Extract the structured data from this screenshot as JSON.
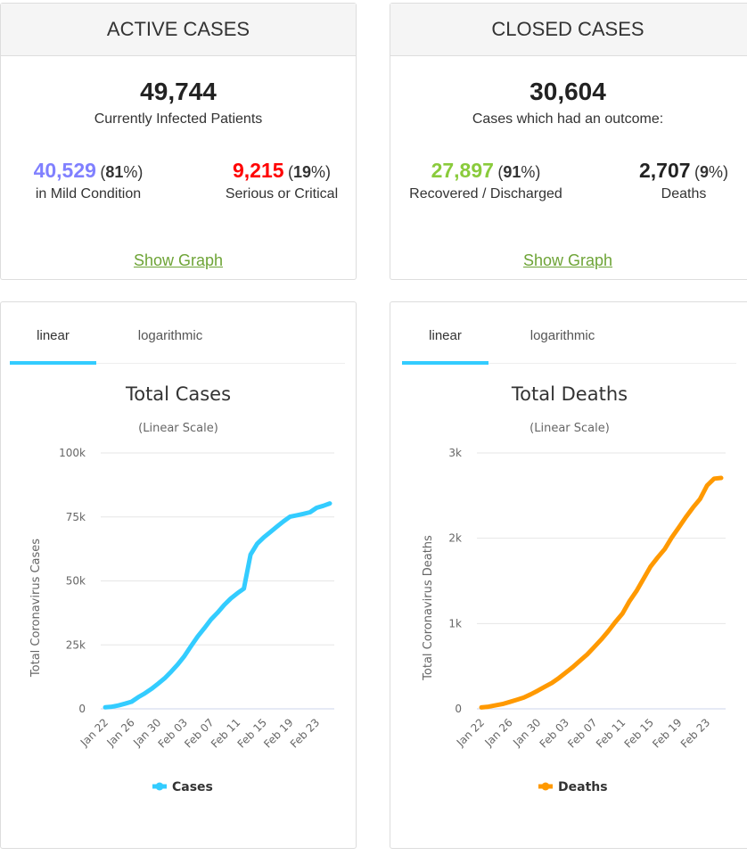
{
  "active": {
    "title": "ACTIVE CASES",
    "total": "49,744",
    "total_label": "Currently Infected Patients",
    "mild_value": "40,529",
    "mild_pct": "81",
    "mild_label": "in Mild Condition",
    "mild_color": "#8080ff",
    "serious_value": "9,215",
    "serious_pct": "19",
    "serious_label": "Serious or Critical",
    "serious_color": "#ff0000",
    "show_graph": "Show Graph"
  },
  "closed": {
    "title": "CLOSED CASES",
    "total": "30,604",
    "total_label": "Cases which had an outcome:",
    "recovered_value": "27,897",
    "recovered_pct": "91",
    "recovered_label": "Recovered / Discharged",
    "recovered_color": "#8acb3c",
    "deaths_value": "2,707",
    "deaths_pct": "9",
    "deaths_label": "Deaths",
    "deaths_color": "#222222",
    "show_graph": "Show Graph"
  },
  "tabs": {
    "linear": "linear",
    "log": "logarithmic",
    "accent": "#33ccff"
  },
  "chart_data": [
    {
      "type": "line",
      "title": "Total Cases",
      "subtitle": "(Linear Scale)",
      "xlabel": "",
      "ylabel": "Total Coronavirus Cases",
      "ylim": [
        0,
        100000
      ],
      "yticks": [
        0,
        25000,
        50000,
        75000,
        100000
      ],
      "ytick_labels": [
        "0",
        "25k",
        "50k",
        "75k",
        "100k"
      ],
      "xtick_labels": [
        "Jan 22",
        "Jan 26",
        "Jan 30",
        "Feb 03",
        "Feb 07",
        "Feb 11",
        "Feb 15",
        "Feb 19",
        "Feb 23"
      ],
      "x": [
        "Jan 22",
        "Jan 23",
        "Jan 24",
        "Jan 25",
        "Jan 26",
        "Jan 27",
        "Jan 28",
        "Jan 29",
        "Jan 30",
        "Jan 31",
        "Feb 01",
        "Feb 02",
        "Feb 03",
        "Feb 04",
        "Feb 05",
        "Feb 06",
        "Feb 07",
        "Feb 08",
        "Feb 09",
        "Feb 10",
        "Feb 11",
        "Feb 12",
        "Feb 13",
        "Feb 14",
        "Feb 15",
        "Feb 16",
        "Feb 17",
        "Feb 18",
        "Feb 19",
        "Feb 20",
        "Feb 21",
        "Feb 22",
        "Feb 23",
        "Feb 24",
        "Feb 25"
      ],
      "grid": true,
      "legend": "bottom",
      "series": [
        {
          "name": "Cases",
          "color": "#33ccff",
          "values": [
            580,
            845,
            1317,
            2015,
            2800,
            4581,
            6058,
            7813,
            9823,
            11950,
            14553,
            17391,
            20630,
            24554,
            28276,
            31481,
            34886,
            37558,
            40554,
            43103,
            45171,
            46997,
            60327,
            64543,
            67015,
            69104,
            71224,
            73258,
            75136,
            75639,
            76197,
            76819,
            78572,
            79339,
            80287
          ]
        }
      ]
    },
    {
      "type": "line",
      "title": "Total Deaths",
      "subtitle": "(Linear Scale)",
      "xlabel": "",
      "ylabel": "Total Coronavirus Deaths",
      "ylim": [
        0,
        3000
      ],
      "yticks": [
        0,
        1000,
        2000,
        3000
      ],
      "ytick_labels": [
        "0",
        "1k",
        "2k",
        "3k"
      ],
      "xtick_labels": [
        "Jan 22",
        "Jan 26",
        "Jan 30",
        "Feb 03",
        "Feb 07",
        "Feb 11",
        "Feb 15",
        "Feb 19",
        "Feb 23"
      ],
      "x": [
        "Jan 22",
        "Jan 23",
        "Jan 24",
        "Jan 25",
        "Jan 26",
        "Jan 27",
        "Jan 28",
        "Jan 29",
        "Jan 30",
        "Jan 31",
        "Feb 01",
        "Feb 02",
        "Feb 03",
        "Feb 04",
        "Feb 05",
        "Feb 06",
        "Feb 07",
        "Feb 08",
        "Feb 09",
        "Feb 10",
        "Feb 11",
        "Feb 12",
        "Feb 13",
        "Feb 14",
        "Feb 15",
        "Feb 16",
        "Feb 17",
        "Feb 18",
        "Feb 19",
        "Feb 20",
        "Feb 21",
        "Feb 22",
        "Feb 23",
        "Feb 24",
        "Feb 25"
      ],
      "grid": true,
      "legend": "bottom",
      "series": [
        {
          "name": "Deaths",
          "color": "#ff9900",
          "values": [
            17,
            25,
            41,
            56,
            80,
            106,
            132,
            170,
            213,
            259,
            304,
            362,
            426,
            492,
            565,
            638,
            724,
            813,
            910,
            1018,
            1115,
            1261,
            1383,
            1526,
            1669,
            1775,
            1873,
            2009,
            2126,
            2247,
            2360,
            2460,
            2618,
            2699,
            2707
          ]
        }
      ]
    }
  ]
}
